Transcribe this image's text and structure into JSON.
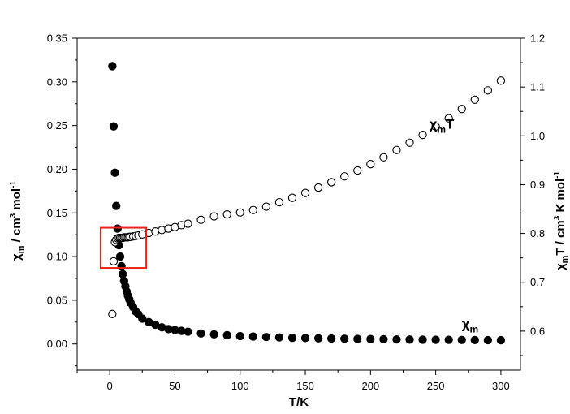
{
  "chart_data": {
    "type": "scatter",
    "xlabel": "T/K",
    "ylabel_left": {
      "main": "χ",
      "sub": "m",
      "rest": " / cm",
      "sup": "3",
      "rest2": " mol",
      "sup2": "-1"
    },
    "ylabel_right": {
      "main": "χ",
      "sub": "m",
      "rest": "T / cm",
      "sup": "3",
      "rest2": " K mol",
      "sup2": "-1"
    },
    "xlim": [
      -25,
      315
    ],
    "ylim_left": [
      -0.03,
      0.35
    ],
    "ylim_right": [
      0.52,
      1.2
    ],
    "x_ticks": [
      0,
      50,
      100,
      150,
      200,
      250,
      300
    ],
    "y_left_ticks": [
      0.0,
      0.05,
      0.1,
      0.15,
      0.2,
      0.25,
      0.3,
      0.35
    ],
    "y_right_ticks": [
      0.6,
      0.7,
      0.8,
      0.9,
      1.0,
      1.1,
      1.2
    ],
    "x_tick_labels": [
      "0",
      "50",
      "100",
      "150",
      "200",
      "250",
      "300"
    ],
    "y_left_tick_labels": [
      "0.00",
      "0.05",
      "0.10",
      "0.15",
      "0.20",
      "0.25",
      "0.30",
      "0.35"
    ],
    "y_right_tick_labels": [
      "0.6",
      "0.7",
      "0.8",
      "0.9",
      "1.0",
      "1.1",
      "1.2"
    ],
    "grid": false,
    "series": [
      {
        "name": "χm",
        "axis": "left",
        "marker": "filled-circle",
        "color": "#000000",
        "x": [
          2,
          3,
          4,
          5,
          6,
          7,
          8,
          9,
          10,
          11,
          12,
          13,
          14,
          15,
          16,
          18,
          20,
          22,
          25,
          30,
          35,
          40,
          45,
          50,
          55,
          60,
          70,
          80,
          90,
          100,
          110,
          120,
          130,
          140,
          150,
          160,
          170,
          180,
          190,
          200,
          210,
          220,
          230,
          240,
          250,
          260,
          270,
          280,
          290,
          300
        ],
        "y": [
          0.318,
          0.249,
          0.196,
          0.158,
          0.132,
          0.113,
          0.1,
          0.089,
          0.08,
          0.072,
          0.066,
          0.06,
          0.055,
          0.051,
          0.047,
          0.042,
          0.037,
          0.034,
          0.029,
          0.025,
          0.022,
          0.019,
          0.017,
          0.016,
          0.015,
          0.014,
          0.012,
          0.011,
          0.01,
          0.009,
          0.0085,
          0.008,
          0.0075,
          0.007,
          0.0068,
          0.0065,
          0.0062,
          0.006,
          0.0058,
          0.0056,
          0.0054,
          0.0052,
          0.005,
          0.0049,
          0.0048,
          0.0047,
          0.0046,
          0.0045,
          0.0044,
          0.0043
        ]
      },
      {
        "name": "χmT",
        "axis": "right",
        "marker": "open-circle",
        "color": "#000000",
        "x": [
          2,
          3,
          4,
          5,
          6,
          7,
          8,
          9,
          10,
          11,
          12,
          13,
          14,
          15,
          16,
          18,
          20,
          22,
          25,
          30,
          35,
          40,
          45,
          50,
          55,
          60,
          70,
          80,
          90,
          100,
          110,
          120,
          130,
          140,
          150,
          160,
          170,
          180,
          190,
          200,
          210,
          220,
          230,
          240,
          250,
          260,
          270,
          280,
          290,
          300
        ],
        "y": [
          0.635,
          0.743,
          0.782,
          0.787,
          0.79,
          0.791,
          0.791,
          0.791,
          0.791,
          0.792,
          0.792,
          0.792,
          0.792,
          0.793,
          0.793,
          0.794,
          0.795,
          0.796,
          0.798,
          0.801,
          0.804,
          0.807,
          0.81,
          0.813,
          0.817,
          0.82,
          0.828,
          0.835,
          0.839,
          0.843,
          0.848,
          0.855,
          0.864,
          0.873,
          0.883,
          0.894,
          0.905,
          0.917,
          0.929,
          0.942,
          0.956,
          0.971,
          0.986,
          1.002,
          1.019,
          1.036,
          1.055,
          1.074,
          1.093,
          1.113
        ]
      }
    ],
    "annotations": [
      {
        "kind": "series-label",
        "series": "χmT",
        "main": "χ",
        "sub": "m",
        "after": "T",
        "x": 245,
        "y_axis": "right",
        "y": 1.015
      },
      {
        "kind": "series-label",
        "series": "χm",
        "main": "χ",
        "sub": "m",
        "after": "",
        "x": 270,
        "y_axis": "left",
        "y": 0.018
      },
      {
        "kind": "highlight-box",
        "color": "#e8231b",
        "x_range": [
          -7,
          28
        ],
        "y_axis": "left",
        "y_range": [
          0.087,
          0.133
        ]
      }
    ]
  }
}
